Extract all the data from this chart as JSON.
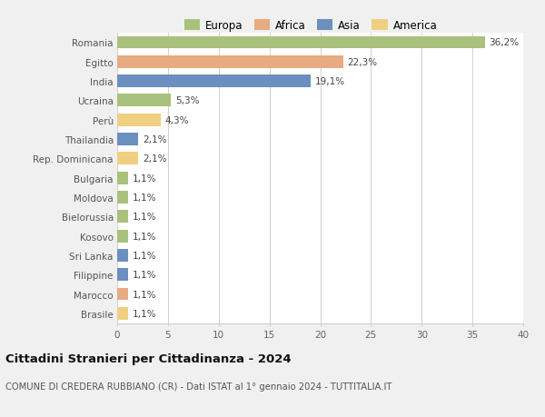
{
  "categories": [
    "Romania",
    "Egitto",
    "India",
    "Ucraina",
    "Perù",
    "Thailandia",
    "Rep. Dominicana",
    "Bulgaria",
    "Moldova",
    "Bielorussia",
    "Kosovo",
    "Sri Lanka",
    "Filippine",
    "Marocco",
    "Brasile"
  ],
  "values": [
    36.2,
    22.3,
    19.1,
    5.3,
    4.3,
    2.1,
    2.1,
    1.1,
    1.1,
    1.1,
    1.1,
    1.1,
    1.1,
    1.1,
    1.1
  ],
  "labels": [
    "36,2%",
    "22,3%",
    "19,1%",
    "5,3%",
    "4,3%",
    "2,1%",
    "2,1%",
    "1,1%",
    "1,1%",
    "1,1%",
    "1,1%",
    "1,1%",
    "1,1%",
    "1,1%",
    "1,1%"
  ],
  "colors": [
    "#a8c17c",
    "#e8aa80",
    "#6b8fbe",
    "#a8c17c",
    "#f0d080",
    "#6b8fbe",
    "#f0d080",
    "#a8c17c",
    "#a8c17c",
    "#a8c17c",
    "#a8c17c",
    "#6b8fbe",
    "#6b8fbe",
    "#e8aa80",
    "#f0d080"
  ],
  "legend_labels": [
    "Europa",
    "Africa",
    "Asia",
    "America"
  ],
  "legend_colors": [
    "#a8c17c",
    "#e8aa80",
    "#6b8fbe",
    "#f0d080"
  ],
  "title": "Cittadini Stranieri per Cittadinanza - 2024",
  "subtitle": "COMUNE DI CREDERA RUBBIANO (CR) - Dati ISTAT al 1° gennaio 2024 - TUTTITALIA.IT",
  "xlim": [
    0,
    40
  ],
  "xticks": [
    0,
    5,
    10,
    15,
    20,
    25,
    30,
    35,
    40
  ],
  "bg_color": "#f0f0f0",
  "plot_bg_color": "#ffffff",
  "grid_color": "#d0d0d0",
  "bar_height": 0.65,
  "label_fontsize": 7.5,
  "tick_fontsize": 7.5,
  "title_fontsize": 9.5,
  "subtitle_fontsize": 7.2
}
